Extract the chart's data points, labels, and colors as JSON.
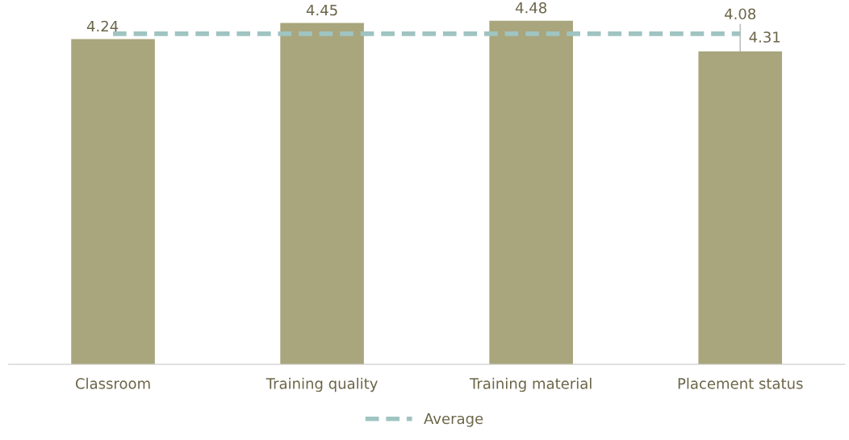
{
  "chart_data": {
    "type": "bar",
    "categories": [
      "Classroom",
      "Training quality",
      "Training material",
      "Placement status"
    ],
    "series": [
      {
        "color": "#a9a57c",
        "values": [
          4.24,
          4.45,
          4.48,
          4.08
        ],
        "value_labels": [
          "4.24",
          "4.45",
          "4.48",
          "4.08"
        ]
      },
      {
        "type": "line",
        "name": "Average",
        "color": "#9fc4c1",
        "line_style": "dashed",
        "values": [
          4.31,
          4.31,
          4.31,
          4.31
        ],
        "value_labels": [
          null,
          null,
          null,
          "4.31"
        ]
      }
    ],
    "grid": false,
    "legend": "bottom",
    "tick_labels": "x"
  }
}
